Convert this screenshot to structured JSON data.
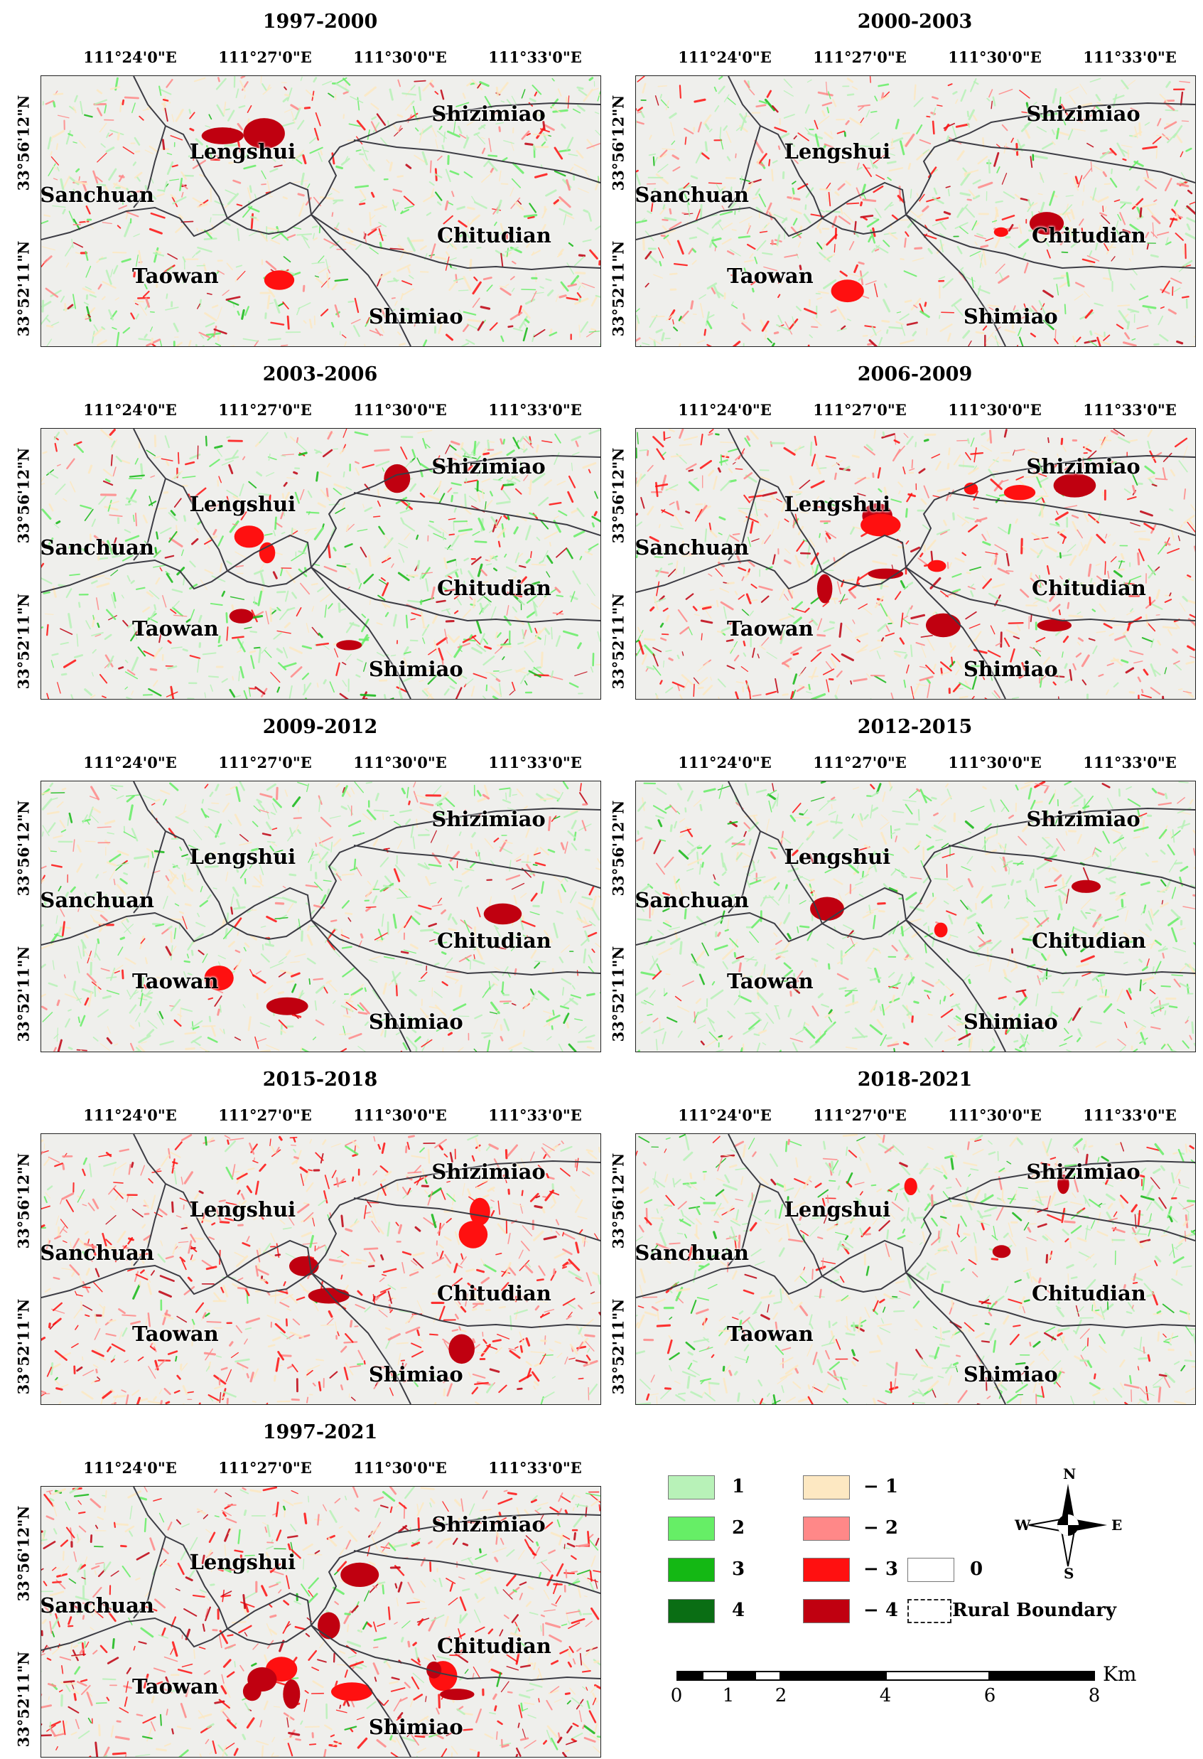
{
  "lon_labels": [
    "111°24'0\"E",
    "111°27'0\"E",
    "111°30'0\"E",
    "111°33'0\"E"
  ],
  "lat_labels": [
    "33°56'12\"N",
    "33°52'11\"N"
  ],
  "place_names": {
    "shizimiao": "Shizimiao",
    "lengshui": "Lengshui",
    "sanchuan": "Sanchuan",
    "chitudian": "Chitudian",
    "taowan": "Taowan",
    "shimiao": "Shimiao"
  },
  "panels": [
    {
      "title": "1997-2000"
    },
    {
      "title": "2000-2003"
    },
    {
      "title": "2003-2006"
    },
    {
      "title": "2006-2009"
    },
    {
      "title": "2009-2012"
    },
    {
      "title": "2012-2015"
    },
    {
      "title": "2015-2018"
    },
    {
      "title": "2018-2021"
    },
    {
      "title": "1997-2021"
    }
  ],
  "legend": {
    "classes": [
      {
        "label": "1",
        "color": "#b8f2b8"
      },
      {
        "label": "2",
        "color": "#66ee66"
      },
      {
        "label": "3",
        "color": "#14b814"
      },
      {
        "label": "4",
        "color": "#0a6e14"
      },
      {
        "label": "− 1",
        "color": "#fde8c2"
      },
      {
        "label": "− 2",
        "color": "#ff8888"
      },
      {
        "label": "− 3",
        "color": "#ff1010"
      },
      {
        "label": "− 4",
        "color": "#c00010"
      },
      {
        "label": "0",
        "color": "#ffffff"
      }
    ],
    "boundary_label": "Rural Boundary"
  },
  "compass": {
    "n": "N",
    "s": "S",
    "e": "E",
    "w": "W"
  },
  "scale": {
    "ticks": [
      "0",
      "1",
      "2",
      "4",
      "6",
      "8"
    ],
    "unit": "Km"
  }
}
